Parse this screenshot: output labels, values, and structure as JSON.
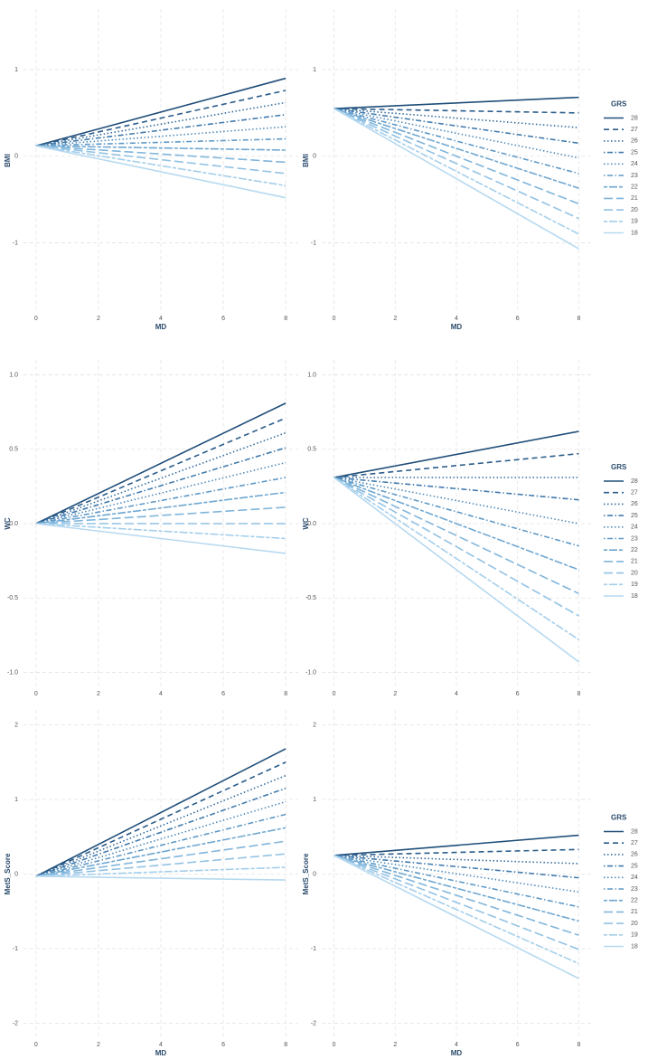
{
  "chart_data": [
    {
      "type": "line",
      "ylabel": "BMI",
      "xlabel": "MD",
      "x": [
        0,
        8
      ],
      "xlim": [
        -0.4,
        8.4
      ],
      "xticks": [
        0,
        2,
        4,
        6,
        8
      ],
      "ylim": [
        -1.8,
        1.7
      ],
      "yticks": [
        -1,
        0,
        1
      ],
      "grid": true,
      "series": [
        {
          "color": "#1f4e79",
          "linetype": "solid",
          "values": [
            0.12,
            0.9
          ]
        },
        {
          "color": "#2a5d8c",
          "linetype": "dashed",
          "values": [
            0.12,
            0.76
          ]
        },
        {
          "color": "#356c9e",
          "linetype": "dotted",
          "values": [
            0.12,
            0.62
          ]
        },
        {
          "color": "#427bad",
          "linetype": "dotdash",
          "values": [
            0.12,
            0.48
          ]
        },
        {
          "color": "#508aba",
          "linetype": "dotted",
          "values": [
            0.12,
            0.34
          ]
        },
        {
          "color": "#5f99c6",
          "linetype": "dotdash",
          "values": [
            0.12,
            0.2
          ]
        },
        {
          "color": "#6fa7d1",
          "linetype": "twodash",
          "values": [
            0.12,
            0.07
          ]
        },
        {
          "color": "#80b5db",
          "linetype": "longdash",
          "values": [
            0.12,
            -0.07
          ]
        },
        {
          "color": "#92c2e3",
          "linetype": "longdash",
          "values": [
            0.12,
            -0.2
          ]
        },
        {
          "color": "#a4ceea",
          "linetype": "twodash",
          "values": [
            0.12,
            -0.34
          ]
        },
        {
          "color": "#b6d9f0",
          "linetype": "solid",
          "values": [
            0.12,
            -0.48
          ]
        }
      ]
    },
    {
      "type": "line",
      "ylabel": "BMI",
      "xlabel": "MD",
      "x": [
        0,
        8
      ],
      "xlim": [
        -0.4,
        8.4
      ],
      "xticks": [
        0,
        2,
        4,
        6,
        8
      ],
      "ylim": [
        -1.8,
        1.7
      ],
      "yticks": [
        -1,
        0,
        1
      ],
      "grid": true,
      "legend_title": "GRS",
      "legend": "right",
      "series": [
        {
          "name": "28",
          "color": "#1f4e79",
          "linetype": "solid",
          "values": [
            0.55,
            0.68
          ]
        },
        {
          "name": "27",
          "color": "#2a5d8c",
          "linetype": "dashed",
          "values": [
            0.55,
            0.5
          ]
        },
        {
          "name": "26",
          "color": "#356c9e",
          "linetype": "dotted",
          "values": [
            0.55,
            0.33
          ]
        },
        {
          "name": "25",
          "color": "#427bad",
          "linetype": "dotdash",
          "values": [
            0.55,
            0.15
          ]
        },
        {
          "name": "24",
          "color": "#508aba",
          "linetype": "dotted",
          "values": [
            0.55,
            -0.02
          ]
        },
        {
          "name": "23",
          "color": "#5f99c6",
          "linetype": "dotdash",
          "values": [
            0.55,
            -0.2
          ]
        },
        {
          "name": "22",
          "color": "#6fa7d1",
          "linetype": "twodash",
          "values": [
            0.55,
            -0.37
          ]
        },
        {
          "name": "21",
          "color": "#80b5db",
          "linetype": "longdash",
          "values": [
            0.55,
            -0.55
          ]
        },
        {
          "name": "20",
          "color": "#92c2e3",
          "linetype": "longdash",
          "values": [
            0.55,
            -0.72
          ]
        },
        {
          "name": "19",
          "color": "#a4ceea",
          "linetype": "twodash",
          "values": [
            0.55,
            -0.9
          ]
        },
        {
          "name": "18",
          "color": "#b6d9f0",
          "linetype": "solid",
          "values": [
            0.55,
            -1.07
          ]
        }
      ]
    },
    {
      "type": "line",
      "ylabel": "WC",
      "x": [
        0,
        8
      ],
      "xlim": [
        -0.4,
        8.4
      ],
      "xticks": [
        0,
        2,
        4,
        6,
        8
      ],
      "ylim": [
        -1.1,
        1.1
      ],
      "yticks": [
        {
          "value": -1,
          "label": "-1.0"
        },
        {
          "value": -0.5,
          "label": "-0.5"
        },
        {
          "value": 0,
          "label": "0.0"
        },
        {
          "value": 0.5,
          "label": "0.5"
        },
        {
          "value": 1,
          "label": "1.0"
        }
      ],
      "grid": true,
      "series": [
        {
          "color": "#1f4e79",
          "linetype": "solid",
          "values": [
            0,
            0.81
          ]
        },
        {
          "color": "#2a5d8c",
          "linetype": "dashed",
          "values": [
            0,
            0.71
          ]
        },
        {
          "color": "#356c9e",
          "linetype": "dotted",
          "values": [
            0,
            0.61
          ]
        },
        {
          "color": "#427bad",
          "linetype": "dotdash",
          "values": [
            0,
            0.51
          ]
        },
        {
          "color": "#508aba",
          "linetype": "dotted",
          "values": [
            0,
            0.41
          ]
        },
        {
          "color": "#5f99c6",
          "linetype": "dotdash",
          "values": [
            0,
            0.31
          ]
        },
        {
          "color": "#6fa7d1",
          "linetype": "twodash",
          "values": [
            0,
            0.21
          ]
        },
        {
          "color": "#80b5db",
          "linetype": "longdash",
          "values": [
            0,
            0.11
          ]
        },
        {
          "color": "#92c2e3",
          "linetype": "longdash",
          "values": [
            0,
            0
          ]
        },
        {
          "color": "#a4ceea",
          "linetype": "twodash",
          "values": [
            0,
            -0.1
          ]
        },
        {
          "color": "#b6d9f0",
          "linetype": "solid",
          "values": [
            0,
            -0.2
          ]
        }
      ]
    },
    {
      "type": "line",
      "ylabel": "WC",
      "x": [
        0,
        8
      ],
      "xlim": [
        -0.4,
        8.4
      ],
      "xticks": [
        0,
        2,
        4,
        6,
        8
      ],
      "ylim": [
        -1.1,
        1.1
      ],
      "yticks": [
        {
          "value": -1,
          "label": "-1.0"
        },
        {
          "value": -0.5,
          "label": "-0.5"
        },
        {
          "value": 0,
          "label": "0.0"
        },
        {
          "value": 0.5,
          "label": "0.5"
        },
        {
          "value": 1,
          "label": "1.0"
        }
      ],
      "grid": true,
      "legend_title": "GRS",
      "legend": "right",
      "series": [
        {
          "name": "28",
          "color": "#1f4e79",
          "linetype": "solid",
          "values": [
            0.31,
            0.62
          ]
        },
        {
          "name": "27",
          "color": "#2a5d8c",
          "linetype": "dashed",
          "values": [
            0.31,
            0.47
          ]
        },
        {
          "name": "26",
          "color": "#356c9e",
          "linetype": "dotted",
          "values": [
            0.31,
            0.31
          ]
        },
        {
          "name": "25",
          "color": "#427bad",
          "linetype": "dotdash",
          "values": [
            0.31,
            0.16
          ]
        },
        {
          "name": "24",
          "color": "#508aba",
          "linetype": "dotted",
          "values": [
            0.31,
            0
          ]
        },
        {
          "name": "23",
          "color": "#5f99c6",
          "linetype": "dotdash",
          "values": [
            0.31,
            -0.15
          ]
        },
        {
          "name": "22",
          "color": "#6fa7d1",
          "linetype": "twodash",
          "values": [
            0.31,
            -0.31
          ]
        },
        {
          "name": "21",
          "color": "#80b5db",
          "linetype": "longdash",
          "values": [
            0.31,
            -0.47
          ]
        },
        {
          "name": "20",
          "color": "#92c2e3",
          "linetype": "longdash",
          "values": [
            0.31,
            -0.62
          ]
        },
        {
          "name": "19",
          "color": "#a4ceea",
          "linetype": "twodash",
          "values": [
            0.31,
            -0.78
          ]
        },
        {
          "name": "18",
          "color": "#b6d9f0",
          "linetype": "solid",
          "values": [
            0.31,
            -0.93
          ]
        }
      ]
    },
    {
      "type": "line",
      "ylabel": "MetS_Score",
      "xlabel": "MD",
      "x": [
        0,
        8
      ],
      "xlim": [
        -0.4,
        8.4
      ],
      "xticks": [
        0,
        2,
        4,
        6,
        8
      ],
      "ylim": [
        -2.2,
        2.2
      ],
      "yticks": [
        -2,
        -1,
        0,
        1,
        2
      ],
      "grid": true,
      "series": [
        {
          "color": "#1f4e79",
          "linetype": "solid",
          "values": [
            -0.03,
            1.68
          ]
        },
        {
          "color": "#2a5d8c",
          "linetype": "dashed",
          "values": [
            -0.03,
            1.5
          ]
        },
        {
          "color": "#356c9e",
          "linetype": "dotted",
          "values": [
            -0.03,
            1.32
          ]
        },
        {
          "color": "#427bad",
          "linetype": "dotdash",
          "values": [
            -0.03,
            1.15
          ]
        },
        {
          "color": "#508aba",
          "linetype": "dotted",
          "values": [
            -0.03,
            0.97
          ]
        },
        {
          "color": "#5f99c6",
          "linetype": "dotdash",
          "values": [
            -0.03,
            0.8
          ]
        },
        {
          "color": "#6fa7d1",
          "linetype": "twodash",
          "values": [
            -0.03,
            0.62
          ]
        },
        {
          "color": "#80b5db",
          "linetype": "longdash",
          "values": [
            -0.03,
            0.44
          ]
        },
        {
          "color": "#92c2e3",
          "linetype": "longdash",
          "values": [
            -0.03,
            0.27
          ]
        },
        {
          "color": "#a4ceea",
          "linetype": "twodash",
          "values": [
            -0.03,
            0.09
          ]
        },
        {
          "color": "#b6d9f0",
          "linetype": "solid",
          "values": [
            -0.03,
            -0.08
          ]
        }
      ]
    },
    {
      "type": "line",
      "ylabel": "MetS_Score",
      "xlabel": "MD",
      "x": [
        0,
        8
      ],
      "xlim": [
        -0.4,
        8.4
      ],
      "xticks": [
        0,
        2,
        4,
        6,
        8
      ],
      "ylim": [
        -2.2,
        2.2
      ],
      "yticks": [
        -2,
        -1,
        0,
        1,
        2
      ],
      "grid": true,
      "legend_title": "GRS",
      "legend": "right",
      "series": [
        {
          "name": "28",
          "color": "#1f4e79",
          "linetype": "solid",
          "values": [
            0.25,
            0.52
          ]
        },
        {
          "name": "27",
          "color": "#2a5d8c",
          "linetype": "dashed",
          "values": [
            0.25,
            0.33
          ]
        },
        {
          "name": "26",
          "color": "#356c9e",
          "linetype": "dotted",
          "values": [
            0.25,
            0.14
          ]
        },
        {
          "name": "25",
          "color": "#427bad",
          "linetype": "dotdash",
          "values": [
            0.25,
            -0.05
          ]
        },
        {
          "name": "24",
          "color": "#508aba",
          "linetype": "dotted",
          "values": [
            0.25,
            -0.24
          ]
        },
        {
          "name": "23",
          "color": "#5f99c6",
          "linetype": "dotdash",
          "values": [
            0.25,
            -0.44
          ]
        },
        {
          "name": "22",
          "color": "#6fa7d1",
          "linetype": "twodash",
          "values": [
            0.25,
            -0.63
          ]
        },
        {
          "name": "21",
          "color": "#80b5db",
          "linetype": "longdash",
          "values": [
            0.25,
            -0.82
          ]
        },
        {
          "name": "20",
          "color": "#92c2e3",
          "linetype": "longdash",
          "values": [
            0.25,
            -1.01
          ]
        },
        {
          "name": "19",
          "color": "#a4ceea",
          "linetype": "twodash",
          "values": [
            0.25,
            -1.2
          ]
        },
        {
          "name": "18",
          "color": "#b6d9f0",
          "linetype": "solid",
          "values": [
            0.25,
            -1.4
          ]
        }
      ]
    }
  ]
}
